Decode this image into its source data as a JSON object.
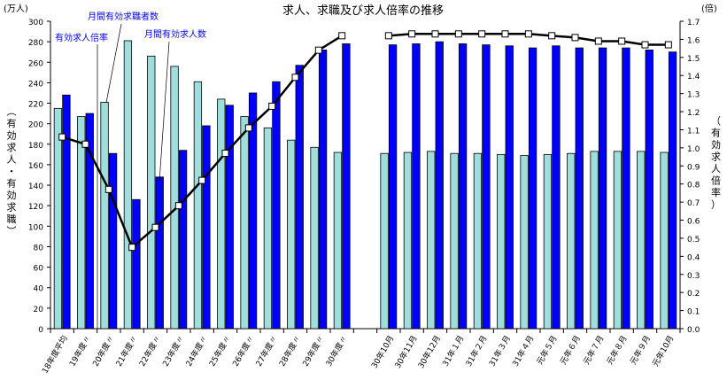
{
  "chart_data": {
    "type": "bar+line",
    "title": "求人、求職及び求人倍率の推移",
    "y_left_unit": "(万人)",
    "y_right_unit": "(倍)",
    "y_left_label": "（有効求人・有効求職）",
    "y_right_label": "（有効求人倍率）",
    "ylim_left": [
      0,
      300
    ],
    "ylim_right": [
      0,
      1.7
    ],
    "yticks_left": [
      0,
      20,
      40,
      60,
      80,
      100,
      120,
      140,
      160,
      180,
      200,
      220,
      240,
      260,
      280,
      300
    ],
    "yticks_right": [
      "0.0",
      "0.1",
      "0.2",
      "0.3",
      "0.4",
      "0.5",
      "0.6",
      "0.7",
      "0.8",
      "0.9",
      "1.0",
      "1.1",
      "1.2",
      "1.3",
      "1.4",
      "1.5",
      "1.6",
      "1.7"
    ],
    "grid": false,
    "annotations": [
      "有効求人倍率",
      "月間有効求職者数",
      "月間有効求人数"
    ],
    "categories": [
      "18年度平均",
      "19年度〃",
      "20年度〃",
      "21年度〃",
      "22年度〃",
      "23年度〃",
      "24年度〃",
      "25年度〃",
      "26年度〃",
      "27年度〃",
      "28年度〃",
      "29年度〃",
      "30年度〃",
      "",
      "30年10月",
      "30年11月",
      "30年12月",
      "31年１月",
      "31年２月",
      "31年３月",
      "31年４月",
      "元年５月",
      "元年６月",
      "元年７月",
      "元年８月",
      "元年９月",
      "元年10月"
    ],
    "series": [
      {
        "name": "月間有効求職者数",
        "type": "bar",
        "axis": "left",
        "color": "#a0dede",
        "values": [
          215,
          207,
          221,
          281,
          266,
          256,
          241,
          224,
          207,
          196,
          184,
          177,
          172,
          null,
          171,
          172,
          173,
          171,
          171,
          170,
          169,
          170,
          171,
          173,
          173,
          173,
          172
        ]
      },
      {
        "name": "月間有効求人数",
        "type": "bar",
        "axis": "left",
        "color": "#0000ff",
        "values": [
          228,
          210,
          171,
          126,
          148,
          174,
          198,
          218,
          230,
          241,
          257,
          272,
          278,
          null,
          277,
          278,
          280,
          278,
          277,
          276,
          274,
          276,
          274,
          274,
          274,
          272,
          270
        ]
      },
      {
        "name": "有効求人倍率",
        "type": "line",
        "axis": "right",
        "color": "#000000",
        "values": [
          1.06,
          1.02,
          0.77,
          0.45,
          0.56,
          0.68,
          0.82,
          0.97,
          1.11,
          1.23,
          1.39,
          1.54,
          1.62,
          null,
          1.62,
          1.63,
          1.63,
          1.63,
          1.63,
          1.63,
          1.63,
          1.62,
          1.61,
          1.59,
          1.59,
          1.57,
          1.57
        ]
      }
    ]
  }
}
